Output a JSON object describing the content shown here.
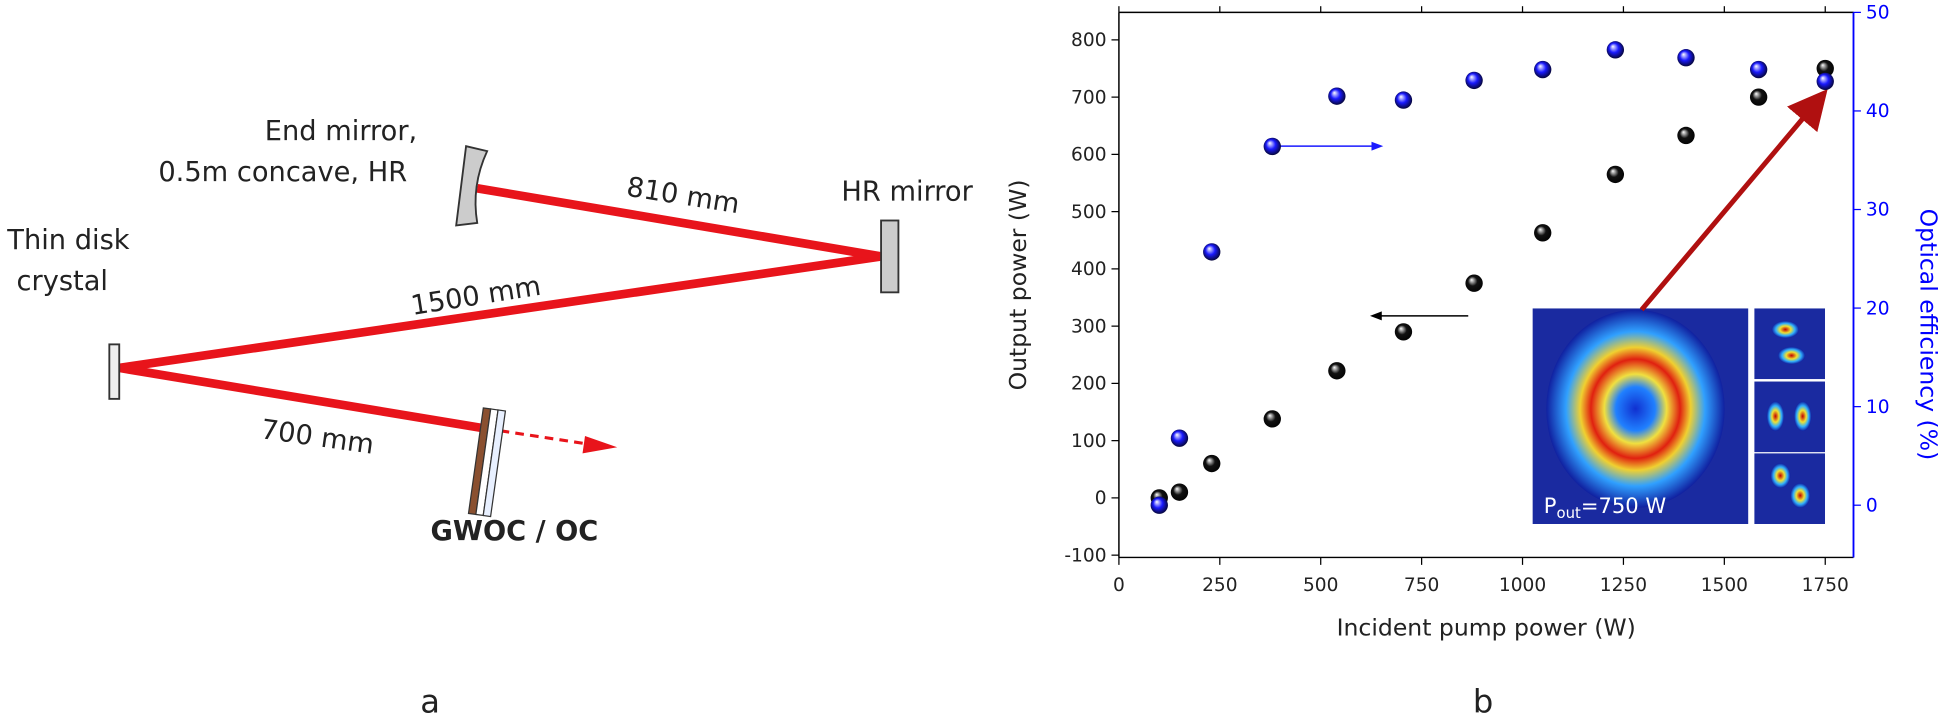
{
  "diagram": {
    "end_mirror_label": [
      "End mirror,",
      "0.5m concave, HR"
    ],
    "hr_mirror_label": "HR mirror",
    "crystal_label": [
      "Thin disk",
      "crystal"
    ],
    "distance_810": "810 mm",
    "distance_1500": "1500 mm",
    "distance_700": "700 mm",
    "output_coupler_label": "GWOC / OC",
    "panel_label": "a"
  },
  "chart_data": {
    "type": "scatter",
    "panel_label": "b",
    "x_label": "Incident pump power (W)",
    "y_label": "Output power (W)",
    "y2_label": "Optical efficiency (%)",
    "xlim": [
      0,
      1820
    ],
    "xticks": [
      0,
      250,
      500,
      750,
      1000,
      1250,
      1500,
      1750
    ],
    "ylim": [
      -104,
      848
    ],
    "yticks": [
      -100,
      0,
      100,
      200,
      300,
      400,
      500,
      600,
      700,
      800
    ],
    "y2lim": [
      -5.3,
      50
    ],
    "y2ticks": [
      0,
      10,
      20,
      30,
      40,
      50
    ],
    "y2_color": "#0000ff",
    "series": [
      {
        "color": "#111111",
        "x": [
          100,
          150,
          230,
          380,
          540,
          705,
          880,
          1050,
          1230,
          1405,
          1585,
          1750
        ],
        "values": [
          0,
          10,
          60,
          138,
          222,
          290,
          375,
          463,
          565,
          633,
          700,
          750
        ]
      },
      {
        "color": "#1a1aff",
        "axis": "y2",
        "x": [
          100,
          150,
          230,
          380,
          540,
          705,
          880,
          1050,
          1230,
          1405,
          1585,
          1750
        ],
        "values": [
          0,
          6.8,
          25.7,
          36.4,
          41.5,
          41.1,
          43.1,
          44.2,
          46.2,
          45.4,
          44.2,
          43
        ]
      }
    ],
    "inset_label": {
      "base": "P",
      "sub": "out",
      "rest": "=750 W"
    }
  }
}
